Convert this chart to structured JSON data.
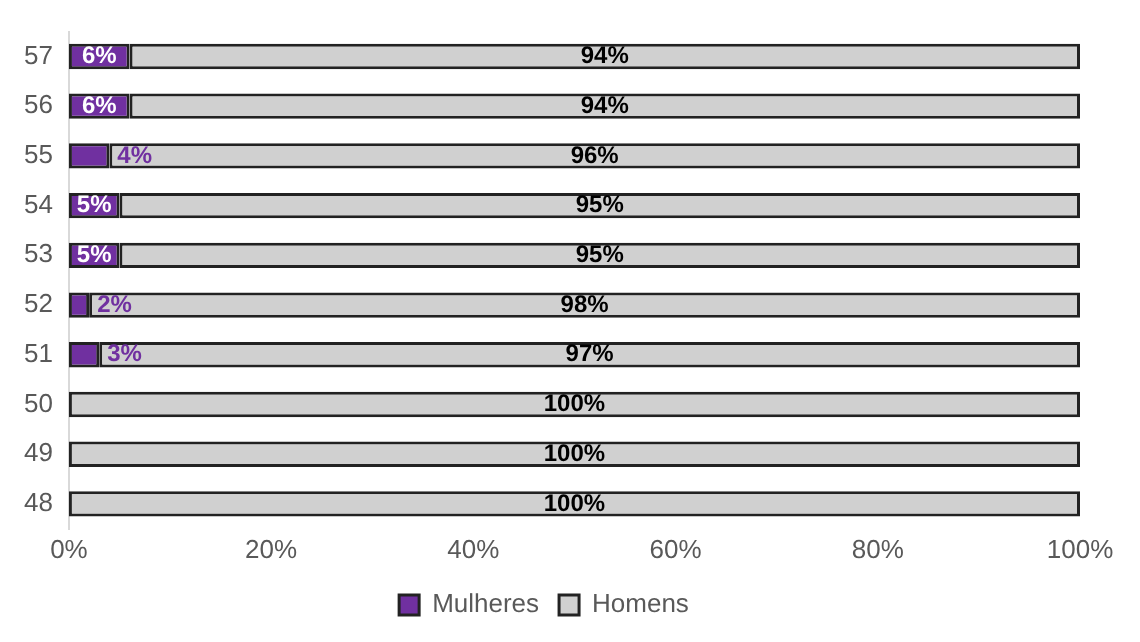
{
  "chart_data": {
    "type": "bar",
    "orientation": "horizontal",
    "stacked": true,
    "categories": [
      "57",
      "56",
      "55",
      "54",
      "53",
      "52",
      "51",
      "50",
      "49",
      "48"
    ],
    "series": [
      {
        "name": "Mulheres",
        "color": "#7030a0",
        "values": [
          6,
          6,
          4,
          5,
          5,
          2,
          3,
          0,
          0,
          0
        ],
        "value_labels": [
          "6%",
          "6%",
          "4%",
          "5%",
          "5%",
          "2%",
          "3%",
          null,
          null,
          null
        ]
      },
      {
        "name": "Homens",
        "color": "#d0d0d0",
        "values": [
          94,
          94,
          96,
          95,
          95,
          98,
          97,
          100,
          100,
          100
        ],
        "value_labels": [
          "94%",
          "94%",
          "96%",
          "95%",
          "95%",
          "98%",
          "97%",
          "100%",
          "100%",
          "100%"
        ]
      }
    ],
    "xlim": [
      0,
      100
    ],
    "xticks": [
      {
        "value": 0,
        "label": "0%"
      },
      {
        "value": 20,
        "label": "20%"
      },
      {
        "value": 40,
        "label": "40%"
      },
      {
        "value": 60,
        "label": "60%"
      },
      {
        "value": 80,
        "label": "80%"
      },
      {
        "value": 100,
        "label": "100%"
      }
    ],
    "grid": false,
    "legend": "bottom"
  }
}
